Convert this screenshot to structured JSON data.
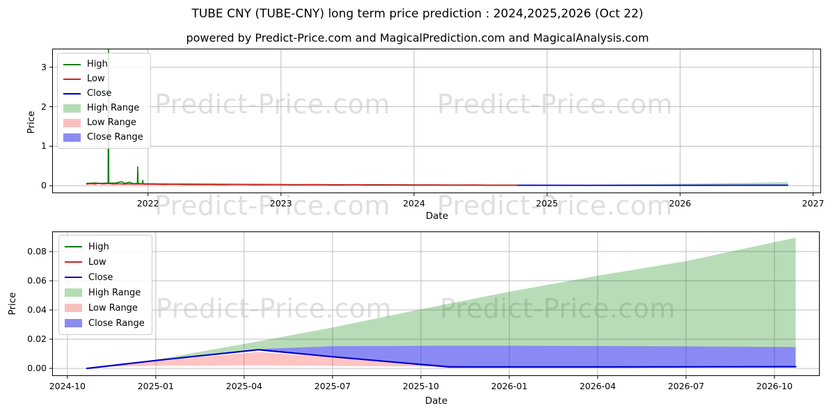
{
  "title": "TUBE CNY (TUBE-CNY) long term price prediction : 2024,2025,2026 (Oct 22)",
  "subtitle": "powered by Predict-Price.com and MagicalPrediction.com and MagicalAnalysis.com",
  "watermark": "Predict-Price.com",
  "colors": {
    "high_line": "#008000",
    "low_line": "#cc2222",
    "close_line": "#0000cc",
    "high_range_fill": "rgba(0,128,0,0.28)",
    "low_range_fill": "rgba(255,40,40,0.28)",
    "close_range_fill": "rgba(30,30,235,0.52)",
    "grid": "#bdbdbd",
    "spine": "#000000"
  },
  "legend": {
    "items": [
      {
        "label": "High",
        "swatch": "line",
        "color": "#008000"
      },
      {
        "label": "Low",
        "swatch": "line",
        "color": "#cc2222"
      },
      {
        "label": "Close",
        "swatch": "line",
        "color": "#0000cc"
      },
      {
        "label": "High Range",
        "swatch": "patch",
        "color": "#b3dcb3"
      },
      {
        "label": "Low Range",
        "swatch": "patch",
        "color": "#f9c0c0"
      },
      {
        "label": "Close Range",
        "swatch": "patch",
        "color": "#8c8cf0"
      }
    ]
  },
  "chart_data": [
    {
      "id": "history",
      "type": "line",
      "title": "",
      "xlabel": "Date",
      "ylabel": "Price",
      "xlim": [
        2021.28,
        2027.06
      ],
      "ylim": [
        -0.19,
        3.47
      ],
      "grid": true,
      "legend_position": "upper-left",
      "x_ticks": [
        {
          "v": 2022,
          "label": "2022"
        },
        {
          "v": 2023,
          "label": "2023"
        },
        {
          "v": 2024,
          "label": "2024"
        },
        {
          "v": 2025,
          "label": "2025"
        },
        {
          "v": 2026,
          "label": "2026"
        },
        {
          "v": 2027,
          "label": "2027"
        }
      ],
      "y_ticks": [
        {
          "v": 0,
          "label": "0"
        },
        {
          "v": 1,
          "label": "1"
        },
        {
          "v": 2,
          "label": "2"
        },
        {
          "v": 3,
          "label": "3"
        }
      ],
      "series": [
        {
          "name": "High Range",
          "kind": "band",
          "color": "rgba(0,128,0,0.28)",
          "top": [
            [
              2024.78,
              0.014
            ],
            [
              2025.3,
              0.022
            ],
            [
              2025.8,
              0.042
            ],
            [
              2026.2,
              0.06
            ],
            [
              2026.5,
              0.074
            ],
            [
              2026.81,
              0.09
            ]
          ],
          "bottom": [
            [
              2024.78,
              0.012
            ],
            [
              2026.81,
              0.016
            ]
          ]
        },
        {
          "name": "Close Range",
          "kind": "band",
          "color": "rgba(30,30,235,0.52)",
          "top": [
            [
              2024.78,
              0.013
            ],
            [
              2025.8,
              0.017
            ],
            [
              2026.81,
              0.018
            ]
          ],
          "bottom": [
            [
              2024.78,
              0.01
            ],
            [
              2026.3,
              0.005
            ],
            [
              2026.81,
              0.003
            ]
          ]
        },
        {
          "name": "High",
          "kind": "line",
          "color": "#008000",
          "width": 1.5,
          "points": [
            [
              2021.54,
              0.06
            ],
            [
              2021.6,
              0.07
            ],
            [
              2021.65,
              0.06
            ],
            [
              2021.7,
              0.07
            ],
            [
              2021.703,
              3.45
            ],
            [
              2021.706,
              0.07
            ],
            [
              2021.75,
              0.065
            ],
            [
              2021.8,
              0.1
            ],
            [
              2021.83,
              0.06
            ],
            [
              2021.86,
              0.09
            ],
            [
              2021.89,
              0.055
            ],
            [
              2021.92,
              0.06
            ],
            [
              2021.923,
              0.48
            ],
            [
              2021.926,
              0.06
            ],
            [
              2021.958,
              0.05
            ],
            [
              2021.961,
              0.14
            ],
            [
              2021.964,
              0.05
            ],
            [
              2022.0,
              0.05
            ],
            [
              2022.1,
              0.046
            ],
            [
              2022.25,
              0.042
            ],
            [
              2022.5,
              0.038
            ],
            [
              2022.75,
              0.034
            ],
            [
              2023.0,
              0.03
            ],
            [
              2023.25,
              0.028
            ],
            [
              2023.5,
              0.026
            ],
            [
              2023.75,
              0.024
            ],
            [
              2024.0,
              0.022
            ],
            [
              2024.25,
              0.02
            ],
            [
              2024.5,
              0.018
            ],
            [
              2024.78,
              0.016
            ]
          ]
        },
        {
          "name": "Low",
          "kind": "line",
          "color": "#cc2222",
          "width": 1.8,
          "points": [
            [
              2021.54,
              0.04
            ],
            [
              2021.57,
              0.052
            ],
            [
              2021.6,
              0.044
            ],
            [
              2021.63,
              0.056
            ],
            [
              2021.66,
              0.046
            ],
            [
              2021.7,
              0.054
            ],
            [
              2021.74,
              0.044
            ],
            [
              2021.78,
              0.05
            ],
            [
              2021.82,
              0.042
            ],
            [
              2021.86,
              0.048
            ],
            [
              2021.9,
              0.04
            ],
            [
              2021.94,
              0.046
            ],
            [
              2021.98,
              0.038
            ],
            [
              2022.05,
              0.042
            ],
            [
              2022.12,
              0.034
            ],
            [
              2022.2,
              0.038
            ],
            [
              2022.3,
              0.03
            ],
            [
              2022.42,
              0.034
            ],
            [
              2022.55,
              0.027
            ],
            [
              2022.68,
              0.031
            ],
            [
              2022.82,
              0.025
            ],
            [
              2022.95,
              0.028
            ],
            [
              2023.1,
              0.022
            ],
            [
              2023.25,
              0.026
            ],
            [
              2023.4,
              0.02
            ],
            [
              2023.55,
              0.024
            ],
            [
              2023.7,
              0.018
            ],
            [
              2023.85,
              0.022
            ],
            [
              2024.0,
              0.016
            ],
            [
              2024.15,
              0.02
            ],
            [
              2024.3,
              0.014
            ],
            [
              2024.45,
              0.018
            ],
            [
              2024.6,
              0.013
            ],
            [
              2024.78,
              0.012
            ]
          ]
        },
        {
          "name": "Close",
          "kind": "line",
          "color": "#0000cc",
          "width": 1.8,
          "points": [
            [
              2024.78,
              0.012
            ],
            [
              2025.3,
              0.011
            ],
            [
              2025.9,
              0.011
            ],
            [
              2026.4,
              0.012
            ],
            [
              2026.81,
              0.013
            ]
          ]
        }
      ]
    },
    {
      "id": "forecast",
      "type": "line",
      "title": "",
      "xlabel": "Date",
      "ylabel": "Price",
      "xlim": [
        2024.707,
        2026.878
      ],
      "ylim": [
        -0.0052,
        0.0938
      ],
      "grid": true,
      "legend_position": "upper-left",
      "x_ticks": [
        {
          "v": 2024.75,
          "label": "2024-10"
        },
        {
          "v": 2025.0,
          "label": "2025-01"
        },
        {
          "v": 2025.25,
          "label": "2025-04"
        },
        {
          "v": 2025.5,
          "label": "2025-07"
        },
        {
          "v": 2025.75,
          "label": "2025-10"
        },
        {
          "v": 2026.0,
          "label": "2026-01"
        },
        {
          "v": 2026.25,
          "label": "2026-04"
        },
        {
          "v": 2026.5,
          "label": "2026-07"
        },
        {
          "v": 2026.75,
          "label": "2026-10"
        }
      ],
      "y_ticks": [
        {
          "v": 0.0,
          "label": "0.00"
        },
        {
          "v": 0.02,
          "label": "0.02"
        },
        {
          "v": 0.04,
          "label": "0.04"
        },
        {
          "v": 0.06,
          "label": "0.06"
        },
        {
          "v": 0.08,
          "label": "0.08"
        }
      ],
      "series": [
        {
          "name": "High Range",
          "kind": "band",
          "color": "rgba(0,128,0,0.28)",
          "top": [
            [
              2024.805,
              0.0
            ],
            [
              2025.0,
              0.006
            ],
            [
              2025.29,
              0.0185
            ],
            [
              2025.5,
              0.028
            ],
            [
              2025.75,
              0.0405
            ],
            [
              2026.0,
              0.0525
            ],
            [
              2026.25,
              0.0635
            ],
            [
              2026.5,
              0.0735
            ],
            [
              2026.81,
              0.0895
            ]
          ],
          "bottom": [
            [
              2024.805,
              0.0
            ],
            [
              2025.0,
              0.0056
            ],
            [
              2025.29,
              0.0132
            ],
            [
              2025.5,
              0.0152
            ],
            [
              2025.86,
              0.0156
            ],
            [
              2026.3,
              0.015
            ],
            [
              2026.81,
              0.0147
            ]
          ]
        },
        {
          "name": "Low Range",
          "kind": "band",
          "color": "rgba(255,40,40,0.28)",
          "top": [
            [
              2024.83,
              0.001
            ],
            [
              2025.0,
              0.005
            ],
            [
              2025.29,
              0.0112
            ],
            [
              2025.6,
              0.0058
            ],
            [
              2025.88,
              0.0013
            ]
          ],
          "bottom": [
            [
              2024.83,
              0.001
            ],
            [
              2025.0,
              0.0018
            ],
            [
              2025.29,
              0.0021
            ],
            [
              2025.6,
              0.0015
            ],
            [
              2025.88,
              0.0013
            ]
          ]
        },
        {
          "name": "Close Range",
          "kind": "band",
          "color": "rgba(30,30,235,0.52)",
          "top": [
            [
              2025.29,
              0.0132
            ],
            [
              2025.5,
              0.0152
            ],
            [
              2025.86,
              0.0156
            ],
            [
              2026.3,
              0.0152
            ],
            [
              2026.81,
              0.0147
            ]
          ],
          "bottom": [
            [
              2025.29,
              0.0126
            ],
            [
              2025.5,
              0.008
            ],
            [
              2025.86,
              0.001
            ],
            [
              2026.3,
              0.001
            ],
            [
              2026.81,
              0.0012
            ]
          ]
        },
        {
          "name": "Close",
          "kind": "line",
          "color": "#0000cc",
          "width": 2.2,
          "points": [
            [
              2024.805,
              0.0
            ],
            [
              2025.0,
              0.0054
            ],
            [
              2025.29,
              0.0128
            ],
            [
              2025.5,
              0.008
            ],
            [
              2025.83,
              0.001
            ],
            [
              2026.3,
              0.001
            ],
            [
              2026.81,
              0.0012
            ]
          ]
        }
      ]
    }
  ]
}
